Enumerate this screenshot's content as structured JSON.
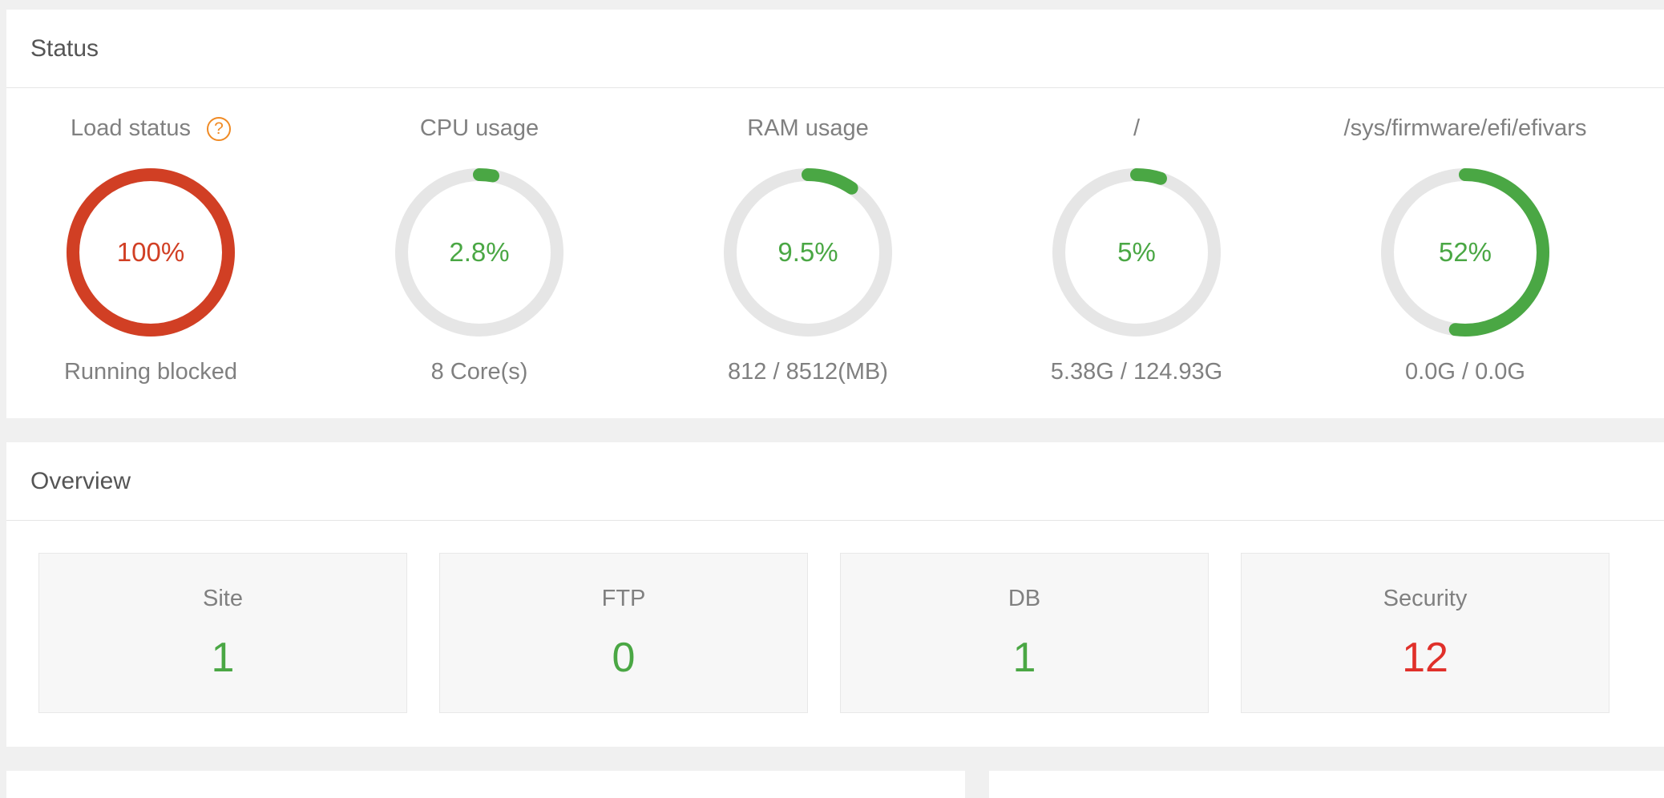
{
  "status": {
    "title": "Status",
    "help_icon": "question-icon",
    "gauges": [
      {
        "title": "Load status",
        "value_text": "100%",
        "percent": 100,
        "caption": "Running blocked",
        "color": "#d13f24"
      },
      {
        "title": "CPU usage",
        "value_text": "2.8%",
        "percent": 2.8,
        "caption": "8 Core(s)",
        "color": "#4aa744"
      },
      {
        "title": "RAM usage",
        "value_text": "9.5%",
        "percent": 9.5,
        "caption": "812 / 8512(MB)",
        "color": "#4aa744"
      },
      {
        "title": "/",
        "value_text": "5%",
        "percent": 5,
        "caption": "5.38G / 124.93G",
        "color": "#4aa744"
      },
      {
        "title": "/sys/firmware/efi/efivars",
        "value_text": "52%",
        "percent": 52,
        "caption": "0.0G / 0.0G",
        "color": "#4aa744"
      }
    ]
  },
  "overview": {
    "title": "Overview",
    "cards": [
      {
        "label": "Site",
        "value": "1",
        "color": "#4aa744"
      },
      {
        "label": "FTP",
        "value": "0",
        "color": "#4aa744"
      },
      {
        "label": "DB",
        "value": "1",
        "color": "#4aa744"
      },
      {
        "label": "Security",
        "value": "12",
        "color": "#e0302a"
      }
    ]
  },
  "colors": {
    "track": "#e6e6e6",
    "ok": "#4aa744",
    "danger": "#d13f24"
  }
}
